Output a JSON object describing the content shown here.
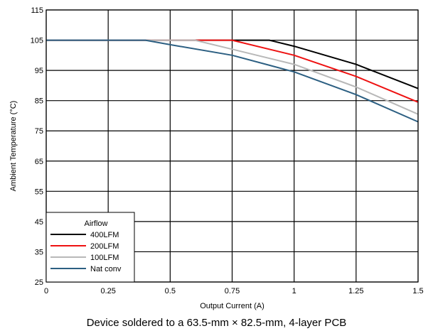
{
  "chart_data": {
    "type": "line",
    "xlabel": "Output Current (A)",
    "ylabel": "Ambient Temperature (°C)",
    "xlim": [
      0,
      1.5
    ],
    "ylim": [
      25,
      115
    ],
    "x_ticks": [
      0,
      0.25,
      0.5,
      0.75,
      1,
      1.25,
      1.5
    ],
    "x_tick_labels": [
      "0",
      "0.25",
      "0.5",
      "0.75",
      "1",
      "1.25",
      "1.5"
    ],
    "y_ticks": [
      25,
      35,
      45,
      55,
      65,
      75,
      85,
      95,
      105,
      115
    ],
    "y_tick_labels": [
      "25",
      "35",
      "45",
      "55",
      "65",
      "75",
      "85",
      "95",
      "105",
      "115"
    ],
    "grid": true,
    "legend": {
      "title": "Airflow",
      "placement": "bottom-left"
    },
    "series": [
      {
        "name": "400LFM",
        "color": "#000000",
        "points": [
          [
            0,
            105
          ],
          [
            0.9,
            105
          ],
          [
            1.0,
            103
          ],
          [
            1.25,
            97
          ],
          [
            1.5,
            89
          ]
        ]
      },
      {
        "name": "200LFM",
        "color": "#ee1111",
        "points": [
          [
            0,
            105
          ],
          [
            0.75,
            105
          ],
          [
            1.0,
            100
          ],
          [
            1.25,
            93
          ],
          [
            1.5,
            84.5
          ]
        ]
      },
      {
        "name": "100LFM",
        "color": "#b8b8b8",
        "points": [
          [
            0,
            105
          ],
          [
            0.6,
            105
          ],
          [
            0.75,
            102
          ],
          [
            1.0,
            97
          ],
          [
            1.25,
            89.5
          ],
          [
            1.5,
            80.5
          ]
        ]
      },
      {
        "name": "Nat conv",
        "color": "#2c5f82",
        "points": [
          [
            0,
            105
          ],
          [
            0.4,
            105
          ],
          [
            0.5,
            103.5
          ],
          [
            0.75,
            100
          ],
          [
            1.0,
            94.5
          ],
          [
            1.25,
            87
          ],
          [
            1.5,
            78
          ]
        ]
      }
    ]
  },
  "caption": "Device soldered to a 63.5-mm × 82.5-mm, 4-layer PCB"
}
